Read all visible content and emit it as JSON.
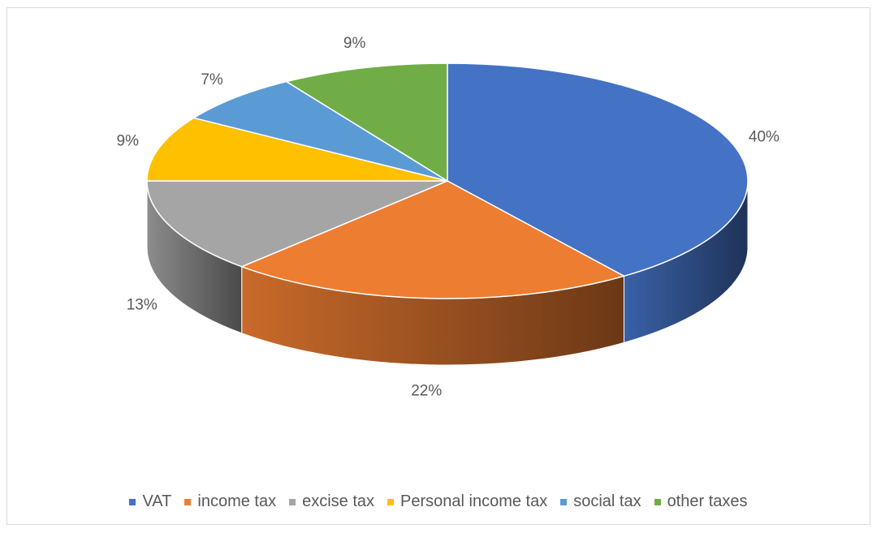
{
  "chart_data": {
    "type": "pie",
    "style": "3d",
    "title": "",
    "categories": [
      "VAT",
      "income tax",
      "excise tax",
      "Personal income tax",
      "social tax",
      "other taxes"
    ],
    "values": [
      40,
      22,
      13,
      9,
      7,
      9
    ],
    "data_labels": [
      "40%",
      "22%",
      "13%",
      "9%",
      "7%",
      "9%"
    ],
    "colors": [
      "#4472C4",
      "#ED7D31",
      "#A5A5A5",
      "#FFC000",
      "#5B9BD5",
      "#70AD47"
    ],
    "legend_position": "bottom",
    "start_angle": "top, clockwise"
  }
}
